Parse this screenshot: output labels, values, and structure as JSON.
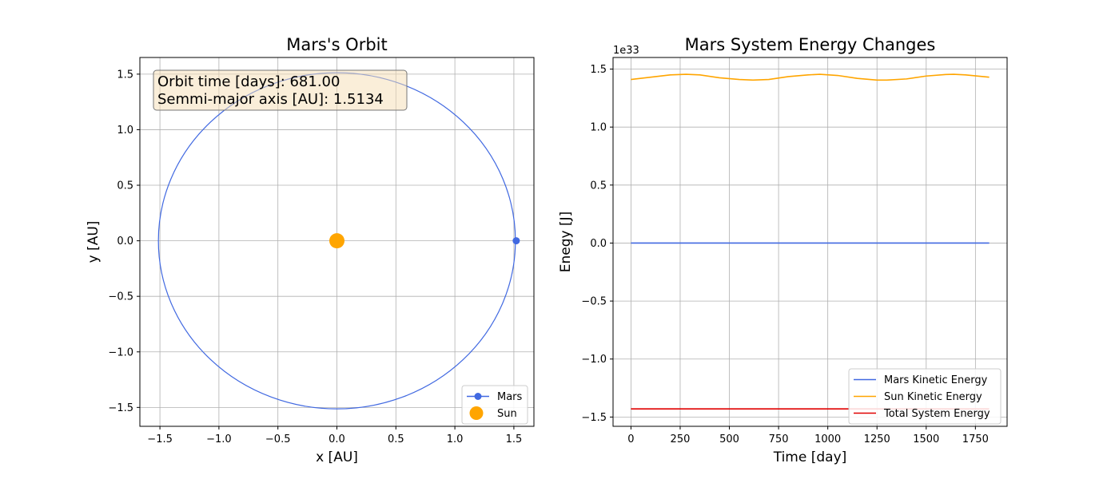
{
  "chart_data": [
    {
      "type": "line",
      "title": "Mars's Orbit",
      "xlabel": "x [AU]",
      "ylabel": "y [AU]",
      "xlim": [
        -1.67,
        1.67
      ],
      "ylim": [
        -1.67,
        1.65
      ],
      "xticks": [
        -1.5,
        -1.0,
        -0.5,
        0.0,
        0.5,
        1.0,
        1.5
      ],
      "xtick_labels": [
        "−1.5",
        "−1.0",
        "−0.5",
        "0.0",
        "0.5",
        "1.0",
        "1.5"
      ],
      "yticks": [
        -1.5,
        -1.0,
        -0.5,
        0.0,
        0.5,
        1.0,
        1.5
      ],
      "ytick_labels": [
        "−1.5",
        "−1.0",
        "−0.5",
        "0.0",
        "0.5",
        "1.0",
        "1.5"
      ],
      "grid": true,
      "legend_position": "lower-right",
      "series": [
        {
          "name": "Mars",
          "kind": "orbit",
          "color": "#4169e1",
          "center": [
            0.0,
            0.0
          ],
          "semi_axis_x": 1.513,
          "semi_axis_y": 1.513,
          "marker": {
            "x": 1.52,
            "y": 0.0
          }
        },
        {
          "name": "Sun",
          "kind": "point",
          "color": "#ffa500",
          "x": 0.0,
          "y": 0.0
        }
      ],
      "info_box": [
        "Orbit time [days]: 681.00",
        "Semmi-major axis [AU]: 1.5134"
      ]
    },
    {
      "type": "line",
      "title": "Mars System Energy Changes",
      "xlabel": "Time [day]",
      "ylabel": "Enegy [J]",
      "y_offset_label": "1e33",
      "xlim": [
        -91,
        1911
      ],
      "ylim": [
        -1.58,
        1.6
      ],
      "xticks": [
        0,
        250,
        500,
        750,
        1000,
        1250,
        1500,
        1750
      ],
      "xtick_labels": [
        "0",
        "250",
        "500",
        "750",
        "1000",
        "1250",
        "1500",
        "1750"
      ],
      "yticks": [
        -1.5,
        -1.0,
        -0.5,
        0.0,
        0.5,
        1.0,
        1.5
      ],
      "ytick_labels": [
        "−1.5",
        "−1.0",
        "−0.5",
        "0.0",
        "0.5",
        "1.0",
        "1.5"
      ],
      "grid": true,
      "legend_position": "lower-right",
      "series": [
        {
          "name": "Mars Kinetic Energy",
          "color": "#4169e1",
          "x": [
            0,
            1820
          ],
          "y": [
            0.0,
            0.0
          ]
        },
        {
          "name": "Sun Kinetic Energy",
          "color": "#ffa500",
          "x": [
            0,
            100,
            200,
            280,
            350,
            450,
            550,
            620,
            700,
            800,
            900,
            960,
            1050,
            1150,
            1250,
            1300,
            1400,
            1500,
            1600,
            1640,
            1700,
            1820
          ],
          "y": [
            1.41,
            1.43,
            1.45,
            1.455,
            1.45,
            1.425,
            1.41,
            1.405,
            1.41,
            1.435,
            1.45,
            1.455,
            1.445,
            1.42,
            1.405,
            1.405,
            1.415,
            1.44,
            1.453,
            1.455,
            1.45,
            1.43
          ]
        },
        {
          "name": "Total System Energy",
          "color": "#e00000",
          "x": [
            0,
            1820
          ],
          "y": [
            -1.43,
            -1.43
          ]
        }
      ]
    }
  ]
}
